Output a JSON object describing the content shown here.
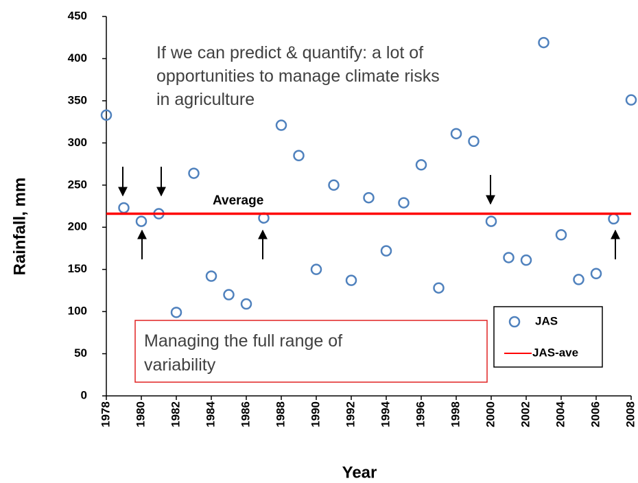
{
  "chart_data": {
    "type": "scatter",
    "x": [
      1978,
      1979,
      1980,
      1981,
      1982,
      1983,
      1984,
      1985,
      1986,
      1987,
      1988,
      1989,
      1990,
      1991,
      1992,
      1993,
      1994,
      1995,
      1996,
      1997,
      1998,
      1999,
      2000,
      2001,
      2002,
      2003,
      2004,
      2005,
      2006,
      2007,
      2008
    ],
    "series": [
      {
        "name": "JAS",
        "color": "#4f81bd",
        "values": [
          333,
          223,
          207,
          216,
          99,
          264,
          142,
          120,
          109,
          211,
          321,
          285,
          150,
          250,
          137,
          235,
          172,
          229,
          274,
          128,
          311,
          302,
          207,
          164,
          161,
          419,
          191,
          138,
          145,
          210,
          351
        ]
      },
      {
        "name": "JAS-ave",
        "color": "#ff0000",
        "values": [
          216,
          216,
          216,
          216,
          216,
          216,
          216,
          216,
          216,
          216,
          216,
          216,
          216,
          216,
          216,
          216,
          216,
          216,
          216,
          216,
          216,
          216,
          216,
          216,
          216,
          216,
          216,
          216,
          216,
          216,
          216
        ]
      }
    ],
    "xlim": [
      1978,
      2008
    ],
    "ylim": [
      0,
      450
    ],
    "xticks": [
      1978,
      1980,
      1982,
      1984,
      1986,
      1988,
      1990,
      1992,
      1994,
      1996,
      1998,
      2000,
      2002,
      2004,
      2006,
      2008
    ],
    "yticks": [
      0,
      50,
      100,
      150,
      200,
      250,
      300,
      350,
      400,
      450
    ],
    "x_label": "Year",
    "y_label": "Rainfall, mm",
    "line_label": "Average",
    "annotation": [
      "If we can predict & quantify: a lot of",
      "opportunities to manage climate risks",
      "in agriculture"
    ],
    "box_text": [
      "Managing the full range of",
      "variability"
    ]
  }
}
